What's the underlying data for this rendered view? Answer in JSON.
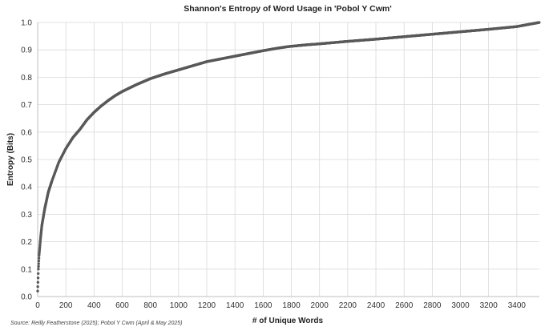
{
  "chart_data": {
    "type": "scatter",
    "title": "Shannon's Entropy of Word Usage in 'Pobol Y Cwm'",
    "xlabel": "# of Unique Words",
    "ylabel": "Entropy (Bits)",
    "source": "Source: Reilly Featherstone (2025); Pobol Y Cwm (April & May 2025)",
    "xlim": [
      0,
      3560
    ],
    "ylim": [
      0,
      1.0
    ],
    "x_ticks": [
      0,
      200,
      400,
      600,
      800,
      1000,
      1200,
      1400,
      1600,
      1800,
      2000,
      2200,
      2400,
      2600,
      2800,
      3000,
      3200,
      3400
    ],
    "x_tick_labels": [
      "0",
      "200",
      "400",
      "600",
      "800",
      "1000",
      "1200",
      "1400",
      "1600",
      "1800",
      "2000",
      "2200",
      "2400",
      "2600",
      "2800",
      "3000",
      "3200",
      "3400"
    ],
    "y_ticks": [
      0,
      0.1,
      0.2,
      0.3,
      0.4,
      0.5,
      0.6,
      0.7,
      0.8,
      0.9,
      1.0
    ],
    "y_tick_labels": [
      "0.0",
      "0.1",
      "0.2",
      "0.3",
      "0.4",
      "0.5",
      "0.6",
      "0.7",
      "0.8",
      "0.9",
      "1.0"
    ],
    "grid": true,
    "series": [
      {
        "color": "#595959",
        "points": [
          [
            0,
            0.02
          ],
          [
            5,
            0.1
          ],
          [
            10,
            0.15
          ],
          [
            20,
            0.21
          ],
          [
            30,
            0.26
          ],
          [
            50,
            0.32
          ],
          [
            75,
            0.38
          ],
          [
            100,
            0.42
          ],
          [
            150,
            0.49
          ],
          [
            200,
            0.54
          ],
          [
            250,
            0.58
          ],
          [
            300,
            0.61
          ],
          [
            350,
            0.645
          ],
          [
            400,
            0.672
          ],
          [
            450,
            0.695
          ],
          [
            500,
            0.715
          ],
          [
            550,
            0.733
          ],
          [
            600,
            0.748
          ],
          [
            700,
            0.773
          ],
          [
            800,
            0.795
          ],
          [
            900,
            0.812
          ],
          [
            1000,
            0.827
          ],
          [
            1100,
            0.842
          ],
          [
            1200,
            0.857
          ],
          [
            1300,
            0.867
          ],
          [
            1400,
            0.877
          ],
          [
            1500,
            0.887
          ],
          [
            1600,
            0.897
          ],
          [
            1700,
            0.906
          ],
          [
            1780,
            0.912
          ],
          [
            1900,
            0.918
          ],
          [
            2000,
            0.922
          ],
          [
            2200,
            0.931
          ],
          [
            2400,
            0.939
          ],
          [
            2600,
            0.948
          ],
          [
            2800,
            0.957
          ],
          [
            3000,
            0.966
          ],
          [
            3200,
            0.975
          ],
          [
            3400,
            0.985
          ],
          [
            3560,
            1.0
          ]
        ]
      }
    ]
  }
}
